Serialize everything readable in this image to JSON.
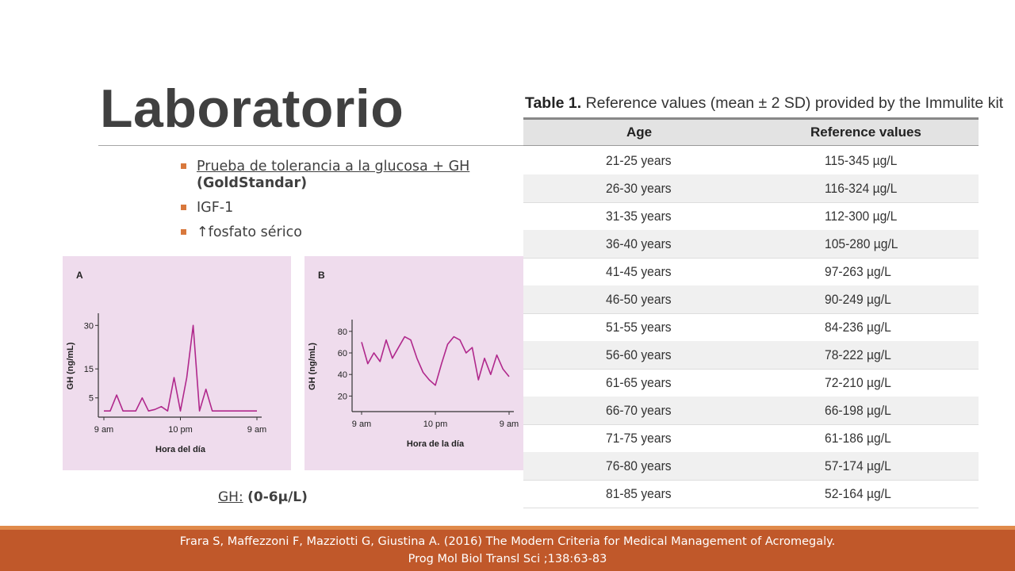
{
  "slide": {
    "title": "Laboratorio",
    "bullets": [
      {
        "text_underlined": "Prueba de tolerancia a la glucosa + GH",
        "text_bold": "(GoldStandar)"
      },
      {
        "text": "IGF-1"
      },
      {
        "text": "↑fosfato sérico"
      }
    ],
    "gh_note": {
      "label": "GH:",
      "value": "(0-6µ/L)"
    },
    "footer": {
      "line1": "Frara S, Maffezzoni F, Mazziotti G, Giustina A. (2016) The Modern Criteria for Medical Management of Acromegaly.",
      "line2": "Prog Mol Biol Transl Sci ;138:63-83"
    },
    "colors": {
      "accent": "#d8783c",
      "footer": "#c0582a",
      "panel": "#efdced",
      "trace": "#b0288c"
    }
  },
  "chart_data": [
    {
      "type": "line",
      "panel_label": "A",
      "xlabel": "Hora del día",
      "ylabel": "GH (ng/mL)",
      "x_ticks": [
        "9 am",
        "10 pm",
        "9 am"
      ],
      "y_ticks": [
        5,
        15,
        30
      ],
      "x": [
        0,
        1,
        2,
        3,
        4,
        5,
        6,
        7,
        8,
        9,
        10,
        11,
        12,
        13,
        14,
        15,
        16,
        17,
        18,
        19,
        20,
        21,
        22,
        23,
        24
      ],
      "series": [
        {
          "values": [
            0.5,
            0.5,
            6,
            0.5,
            0.5,
            0.5,
            5,
            0.5,
            1,
            2,
            0.5,
            12,
            0.5,
            12,
            30,
            0.5,
            8,
            0.5,
            0.5,
            0.5,
            0.5,
            0.5,
            0.5,
            0.5,
            0.5
          ]
        }
      ]
    },
    {
      "type": "line",
      "panel_label": "B",
      "xlabel": "Hora de la día",
      "ylabel": "GH (ng/mL)",
      "x_ticks": [
        "9 am",
        "10 pm",
        "9 am"
      ],
      "y_ticks": [
        20,
        40,
        60,
        80
      ],
      "x": [
        0,
        1,
        2,
        3,
        4,
        5,
        6,
        7,
        8,
        9,
        10,
        11,
        12,
        13,
        14,
        15,
        16,
        17,
        18,
        19,
        20,
        21,
        22,
        23,
        24
      ],
      "series": [
        {
          "values": [
            70,
            50,
            60,
            52,
            72,
            55,
            65,
            75,
            72,
            55,
            42,
            35,
            30,
            50,
            68,
            75,
            72,
            60,
            65,
            35,
            55,
            40,
            58,
            45,
            38
          ]
        }
      ]
    },
    {
      "type": "table",
      "caption_label": "Table 1.",
      "caption_text": "Reference values (mean ± 2 SD) provided by the Immulite kit",
      "columns": [
        "Age",
        "Reference values"
      ],
      "rows": [
        [
          "21-25 years",
          "115-345 µg/L"
        ],
        [
          "26-30 years",
          "116-324 µg/L"
        ],
        [
          "31-35 years",
          "112-300 µg/L"
        ],
        [
          "36-40 years",
          "105-280 µg/L"
        ],
        [
          "41-45 years",
          "97-263 µg/L"
        ],
        [
          "46-50 years",
          "90-249 µg/L"
        ],
        [
          "51-55 years",
          "84-236 µg/L"
        ],
        [
          "56-60 years",
          "78-222 µg/L"
        ],
        [
          "61-65 years",
          "72-210 µg/L"
        ],
        [
          "66-70 years",
          "66-198 µg/L"
        ],
        [
          "71-75 years",
          "61-186 µg/L"
        ],
        [
          "76-80 years",
          "57-174 µg/L"
        ],
        [
          "81-85 years",
          "52-164 µg/L"
        ]
      ]
    }
  ]
}
